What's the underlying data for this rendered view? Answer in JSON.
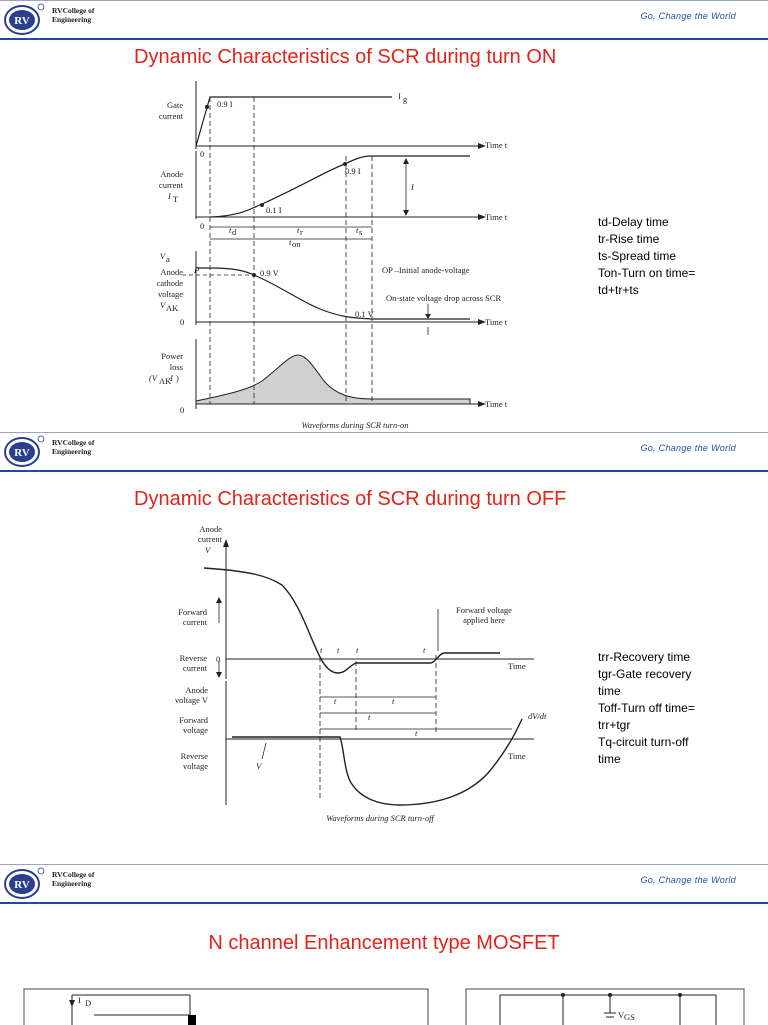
{
  "header": {
    "college_line1": "RVCollege of",
    "college_line2": "Engineering",
    "logo_text": "RV",
    "tagline": "Go, Change the World"
  },
  "slides": [
    {
      "title": "Dynamic Characteristics of SCR during turn ON",
      "notes": [
        "td-Delay time",
        "tr-Rise time",
        "ts-Spread time",
        "Ton-Turn on time=",
        "td+tr+ts"
      ],
      "figure": {
        "caption": "Waveforms during SCR turn-on",
        "gate_label": [
          "Gate",
          "current"
        ],
        "anode_label": [
          "Anode",
          "current"
        ],
        "voltage_label": [
          "Anode",
          "cathode",
          "voltage"
        ],
        "power_label": [
          "Power",
          "loss"
        ],
        "time_label": "Time t",
        "ig": "I",
        "ig_sub": "g",
        "pt09ig": "0.9 I",
        "pt09it": "0.9 I",
        "pt01it": "0.1 I",
        "it_label": "I",
        "t_sub": "T",
        "g_sub": "g",
        "td": "t",
        "td_sub": "d",
        "tr": "t",
        "tr_sub": "r",
        "ts": "t",
        "ts_sub": "s",
        "ton": "t",
        "ton_sub": "on",
        "va": "V",
        "va_sub": "a",
        "vak": "V",
        "vak_sub": "AK",
        "pt09va": "0.9 V",
        "pt01va": "0.1 V",
        "op_label": "OP –Initial anode-voltage",
        "onstate_label": "On-state voltage drop across SCR",
        "p_label": "P",
        "zero": "0",
        "power_formula": "(V",
        "power_formula_sub": "AK",
        "power_formula_mid": "·I",
        "power_formula_end": ")"
      }
    },
    {
      "title": "Dynamic Characteristics of SCR during turn OFF",
      "notes": [
        "trr-Recovery time",
        "tgr-Gate recovery",
        "time",
        "Toff-Turn off time=",
        "trr+tgr",
        "Tq-circuit turn-off",
        "time"
      ],
      "figure": {
        "caption": "Waveforms during SCR turn-off",
        "anode_current": [
          "Anode",
          "current"
        ],
        "forward_current": [
          "Forward",
          "current"
        ],
        "reverse_current": [
          "Reverse",
          "current"
        ],
        "anode_voltage": [
          "Anode",
          "voltage V"
        ],
        "forward_voltage": [
          "Forward",
          "voltage"
        ],
        "reverse_voltage": [
          "Reverse",
          "voltage"
        ],
        "fv_applied": [
          "Forward voltage",
          "applied here"
        ],
        "time": "Time",
        "dvdt": "dV/dt",
        "t1": "t",
        "t2": "t",
        "t3": "t",
        "t4": "t",
        "trr": "t",
        "tgr": "t",
        "toff": "t",
        "tq": "t",
        "vt": "V",
        "zero": "0"
      }
    },
    {
      "title": "N channel Enhancement type MOSFET",
      "figure": {
        "id_label": "I",
        "id_sub": "D",
        "vgs_label": "V",
        "vgs_sub": "GS"
      }
    }
  ]
}
